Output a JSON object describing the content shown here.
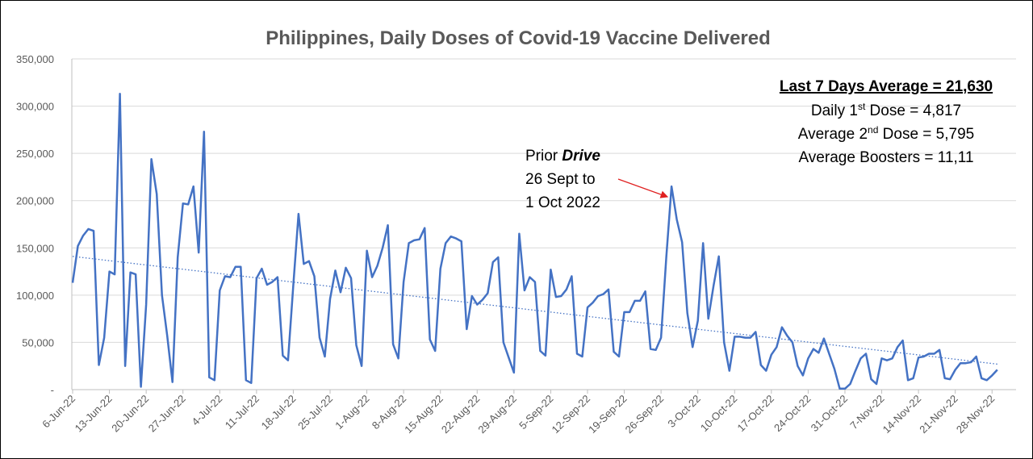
{
  "chart_data": {
    "type": "line",
    "title": "Philippines, Daily Doses of Covid-19 Vaccine Delivered",
    "xlabel": "",
    "ylabel": "",
    "ylim": [
      0,
      350000
    ],
    "y_ticks": [
      "-",
      "50,000",
      "100,000",
      "150,000",
      "200,000",
      "250,000",
      "300,000",
      "350,000"
    ],
    "y_tick_values": [
      0,
      50000,
      100000,
      150000,
      200000,
      250000,
      300000,
      350000
    ],
    "x_start": "6-Jun-22",
    "x_tick_labels": [
      "6-Jun-22",
      "13-Jun-22",
      "20-Jun-22",
      "27-Jun-22",
      "4-Jul-22",
      "11-Jul-22",
      "18-Jul-22",
      "25-Jul-22",
      "1-Aug-22",
      "8-Aug-22",
      "15-Aug-22",
      "22-Aug-22",
      "29-Aug-22",
      "5-Sep-22",
      "12-Sep-22",
      "19-Sep-22",
      "26-Sep-22",
      "3-Oct-22",
      "10-Oct-22",
      "17-Oct-22",
      "24-Oct-22",
      "31-Oct-22",
      "7-Nov-22",
      "14-Nov-22",
      "21-Nov-22",
      "28-Nov-22"
    ],
    "grid": true,
    "legend": "none",
    "colors": {
      "series": "#4472c4",
      "trend": "#4472c4",
      "arrow": "#e02020",
      "grid": "#d9d9d9",
      "text": "#595959"
    },
    "series": [
      {
        "values": [
          113000,
          152000,
          163000,
          170000,
          168000,
          26000,
          55000,
          125000,
          122000,
          313000,
          25000,
          124000,
          122000,
          3000,
          90000,
          244000,
          207000,
          100000,
          57000,
          8000,
          140000,
          197000,
          196000,
          215000,
          145000,
          273000,
          13000,
          10000,
          105000,
          120000,
          119000,
          130000,
          130000,
          10000,
          7000,
          118000,
          128000,
          111000,
          114000,
          119000,
          36000,
          31000,
          110000,
          186000,
          133000,
          136000,
          120000,
          55000,
          35000,
          96000,
          126000,
          103000,
          129000,
          118000,
          47000,
          25000,
          147000,
          119000,
          131000,
          150000,
          174000,
          48000,
          33000,
          114000,
          155000,
          158000,
          159000,
          171000,
          53000,
          41000,
          128000,
          155000,
          162000,
          160000,
          157000,
          64000,
          99000,
          90000,
          95000,
          102000,
          135000,
          140000,
          50000,
          34000,
          18000,
          165000,
          105000,
          119000,
          114000,
          41000,
          36000,
          127000,
          98000,
          99000,
          106000,
          120000,
          38000,
          35000,
          87000,
          92000,
          99000,
          101000,
          106000,
          40000,
          35000,
          82000,
          82000,
          94000,
          94000,
          104000,
          43000,
          42000,
          55000,
          140000,
          215000,
          180000,
          156000,
          81000,
          45000,
          73000,
          155000,
          75000,
          110000,
          141000,
          50000,
          20000,
          56000,
          56000,
          55000,
          55000,
          61000,
          26000,
          20000,
          37000,
          45000,
          66000,
          57000,
          50000,
          25000,
          15000,
          33000,
          43000,
          39000,
          54000,
          38000,
          22000,
          1000,
          1000,
          6000,
          20000,
          33000,
          38000,
          11000,
          6000,
          33000,
          31000,
          33000,
          45000,
          52000,
          10000,
          12000,
          34000,
          35000,
          38000,
          38000,
          42000,
          12000,
          11000,
          21000,
          28000,
          28000,
          29000,
          35000,
          12000,
          10000,
          15000,
          21000
        ]
      }
    ],
    "trendline": {
      "type": "linear",
      "start": 141000,
      "end": 27000
    },
    "annotations": {
      "drive": {
        "line1": "Prior ",
        "line1_bold": "Drive",
        "line2": "26 Sept to",
        "line3": "1 Oct 2022",
        "target_date": "26-Sep-22"
      },
      "summary": {
        "heading": "Last 7 Days Average = 21,630",
        "l1_a": "Daily 1",
        "l1_sup": "st",
        "l1_b": " Dose = 4,817",
        "l2_a": "Average 2",
        "l2_sup": "nd",
        "l2_b": " Dose = 5,795",
        "l3": "Average Boosters = 11,11"
      }
    }
  }
}
